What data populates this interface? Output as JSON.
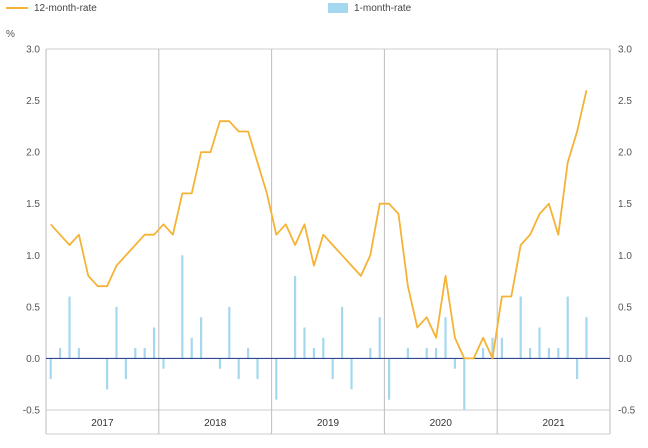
{
  "chart_data": {
    "type": "bar+line",
    "legend": {
      "line_label": "12-month-rate",
      "bar_label": "1-month-rate",
      "placement": "top"
    },
    "y_unit": "%",
    "ylim": [
      -0.5,
      3.0
    ],
    "yticks": [
      "3.0",
      "2.5",
      "2.0",
      "1.5",
      "1.0",
      "0.5",
      "0.0",
      "-0.5"
    ],
    "years": [
      "2017",
      "2018",
      "2019",
      "2020",
      "2021"
    ],
    "months_per_year": 12,
    "grid": true,
    "series": [
      {
        "name": "12-month-rate",
        "kind": "line",
        "color": "#f5b335",
        "values": [
          1.3,
          1.2,
          1.1,
          1.2,
          0.8,
          0.7,
          0.7,
          0.9,
          1.0,
          1.1,
          1.2,
          1.2,
          1.3,
          1.2,
          1.6,
          1.6,
          2.0,
          2.0,
          2.3,
          2.3,
          2.2,
          2.2,
          1.9,
          1.6,
          1.2,
          1.3,
          1.1,
          1.3,
          0.9,
          1.2,
          1.1,
          1.0,
          0.9,
          0.8,
          1.0,
          1.5,
          1.5,
          1.4,
          0.7,
          0.3,
          0.4,
          0.2,
          0.8,
          0.2,
          0.0,
          0.0,
          0.2,
          0.0,
          0.6,
          0.6,
          1.1,
          1.2,
          1.4,
          1.5,
          1.2,
          1.9,
          2.2,
          2.6
        ]
      },
      {
        "name": "1-month-rate",
        "kind": "bar",
        "color": "#a5d8ee",
        "values": [
          -0.2,
          0.1,
          0.6,
          0.1,
          0.0,
          0.0,
          -0.3,
          0.5,
          -0.2,
          0.1,
          0.1,
          0.3,
          -0.1,
          0.0,
          1.0,
          0.2,
          0.4,
          0.0,
          -0.1,
          0.5,
          -0.2,
          0.1,
          -0.2,
          0.0,
          -0.4,
          0.0,
          0.8,
          0.3,
          0.1,
          0.2,
          -0.2,
          0.5,
          -0.3,
          0.0,
          0.1,
          0.4,
          -0.4,
          0.0,
          0.1,
          0.0,
          0.1,
          0.1,
          0.4,
          -0.1,
          -0.5,
          0.0,
          0.1,
          0.2,
          0.2,
          0.0,
          0.6,
          0.1,
          0.3,
          0.1,
          0.1,
          0.6,
          -0.2,
          0.4
        ]
      }
    ]
  }
}
